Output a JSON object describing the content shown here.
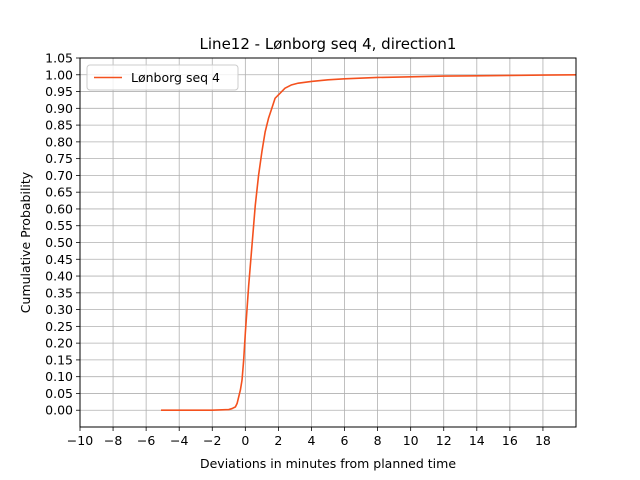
{
  "chart_data": {
    "type": "line",
    "title": "Line12 - Lønborg seq 4, direction1",
    "xlabel": "Deviations in minutes from planned time",
    "ylabel": "Cumulative Probability",
    "xlim": [
      -10,
      20
    ],
    "ylim": [
      -0.05,
      1.05
    ],
    "xticks": [
      -10,
      -8,
      -6,
      -4,
      -2,
      0,
      2,
      4,
      6,
      8,
      10,
      12,
      14,
      16,
      18
    ],
    "xtick_labels": [
      "−10",
      "−8",
      "−6",
      "−4",
      "−2",
      "0",
      "2",
      "4",
      "6",
      "8",
      "10",
      "12",
      "14",
      "16",
      "18"
    ],
    "yticks": [
      0.0,
      0.05,
      0.1,
      0.15,
      0.2,
      0.25,
      0.3,
      0.35,
      0.4,
      0.45,
      0.5,
      0.55,
      0.6,
      0.65,
      0.7,
      0.75,
      0.8,
      0.85,
      0.9,
      0.95,
      1.0,
      1.05
    ],
    "ytick_labels": [
      "0.00",
      "0.05",
      "0.10",
      "0.15",
      "0.20",
      "0.25",
      "0.30",
      "0.35",
      "0.40",
      "0.45",
      "0.50",
      "0.55",
      "0.60",
      "0.65",
      "0.70",
      "0.75",
      "0.80",
      "0.85",
      "0.90",
      "0.95",
      "1.00",
      "1.05"
    ],
    "grid": true,
    "legend_position": "top-left",
    "series": [
      {
        "name": "Lønborg seq 4",
        "color": "#f4511e",
        "x": [
          -5.1,
          -3,
          -2,
          -1,
          -0.8,
          -0.6,
          -0.5,
          -0.4,
          -0.3,
          -0.2,
          -0.1,
          0,
          0.1,
          0.2,
          0.3,
          0.4,
          0.5,
          0.6,
          0.8,
          1.0,
          1.2,
          1.4,
          1.6,
          1.8,
          2.0,
          2.4,
          2.8,
          3.2,
          4,
          5,
          6,
          8,
          10,
          12,
          14,
          16,
          18,
          20
        ],
        "y": [
          0,
          0,
          0,
          0.002,
          0.005,
          0.01,
          0.02,
          0.04,
          0.06,
          0.09,
          0.15,
          0.23,
          0.3,
          0.37,
          0.43,
          0.49,
          0.55,
          0.61,
          0.7,
          0.77,
          0.83,
          0.87,
          0.9,
          0.93,
          0.94,
          0.96,
          0.97,
          0.975,
          0.98,
          0.985,
          0.988,
          0.992,
          0.994,
          0.996,
          0.997,
          0.998,
          0.999,
          1.0
        ]
      }
    ]
  }
}
